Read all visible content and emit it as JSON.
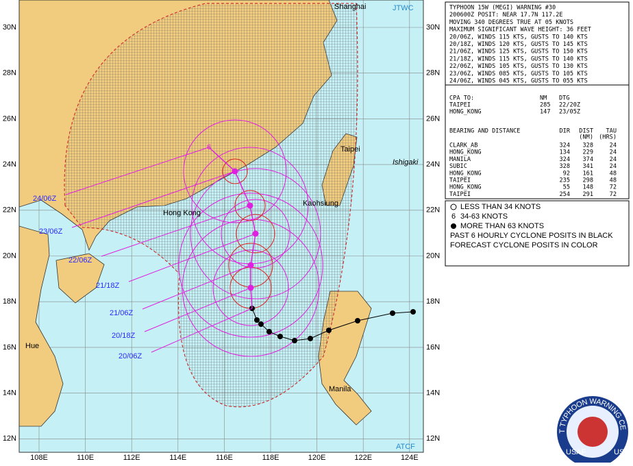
{
  "map": {
    "agency_top": "JTWC",
    "agency_bottom": "ATCF",
    "lat_labels": [
      "30N",
      "28N",
      "26N",
      "24N",
      "22N",
      "20N",
      "18N",
      "16N",
      "14N",
      "12N"
    ],
    "lon_labels": [
      "108E",
      "110E",
      "112E",
      "114E",
      "116E",
      "118E",
      "120E",
      "122E",
      "124E"
    ],
    "cities": [
      "Shanghai",
      "Taipei",
      "Ishigaki",
      "Kaohsiung",
      "Hong Kong",
      "Hue",
      "Manila"
    ],
    "forecast_labels": [
      "24/06Z",
      "23/06Z",
      "22/06Z",
      "21/18Z",
      "21/06Z",
      "20/18Z",
      "20/06Z"
    ]
  },
  "warning": {
    "lines": [
      "TYPHOON 15W (MEGI) WARNING #30",
      "200600Z POSIT: NEAR 17.7N 117.2E",
      "MOVING 340 DEGREES TRUE AT 05 KNOTS",
      "MAXIMUM SIGNIFICANT WAVE HEIGHT: 36 FEET",
      "20/06Z, WINDS 115 KTS, GUSTS TO 140 KTS",
      "20/18Z, WINDS 120 KTS, GUSTS TO 145 KTS",
      "21/06Z, WINDS 125 KTS, GUSTS TO 150 KTS",
      "21/18Z, WINDS 115 KTS, GUSTS TO 140 KTS",
      "22/06Z, WINDS 105 KTS, GUSTS TO 130 KTS",
      "23/06Z, WINDS 085 KTS, GUSTS TO 105 KTS",
      "24/06Z, WINDS 045 KTS, GUSTS TO 055 KTS"
    ],
    "cpa": {
      "header": [
        "CPA TO:",
        "NM",
        "DTG"
      ],
      "rows": [
        [
          "TAIPEI",
          "285",
          "22/20Z"
        ],
        [
          "HONG_KONG",
          "147",
          "23/05Z"
        ]
      ]
    },
    "bearing": {
      "header": [
        "BEARING AND DISTANCE",
        "DIR",
        "DIST",
        "TAU"
      ],
      "subheader": [
        "(NM)",
        "(HRS)"
      ],
      "rows": [
        [
          "CLARK_AB",
          "324",
          "328",
          "24"
        ],
        [
          "HONG_KONG",
          "134",
          "229",
          "24"
        ],
        [
          "MANILA",
          "324",
          "374",
          "24"
        ],
        [
          "SUBIC",
          "328",
          "341",
          "24"
        ],
        [
          "HONG_KONG",
          "92",
          "161",
          "48"
        ],
        [
          "TAIPEI",
          "235",
          "298",
          "48"
        ],
        [
          "HONG_KONG",
          "55",
          "148",
          "72"
        ],
        [
          "TAIPEI",
          "254",
          "291",
          "72"
        ]
      ]
    }
  },
  "legend": [
    "LESS THAN 34 KNOTS",
    "34-63 KNOTS",
    "MORE THAN 63 KNOTS",
    "PAST 6 HOURLY CYCLONE POSITS IN BLACK",
    "FORECAST CYCLONE POSITS IN COLOR"
  ],
  "logo": {
    "arc": "JOINT TYPHOON WARNING CENTER",
    "left": "USAF",
    "right": "USN"
  }
}
